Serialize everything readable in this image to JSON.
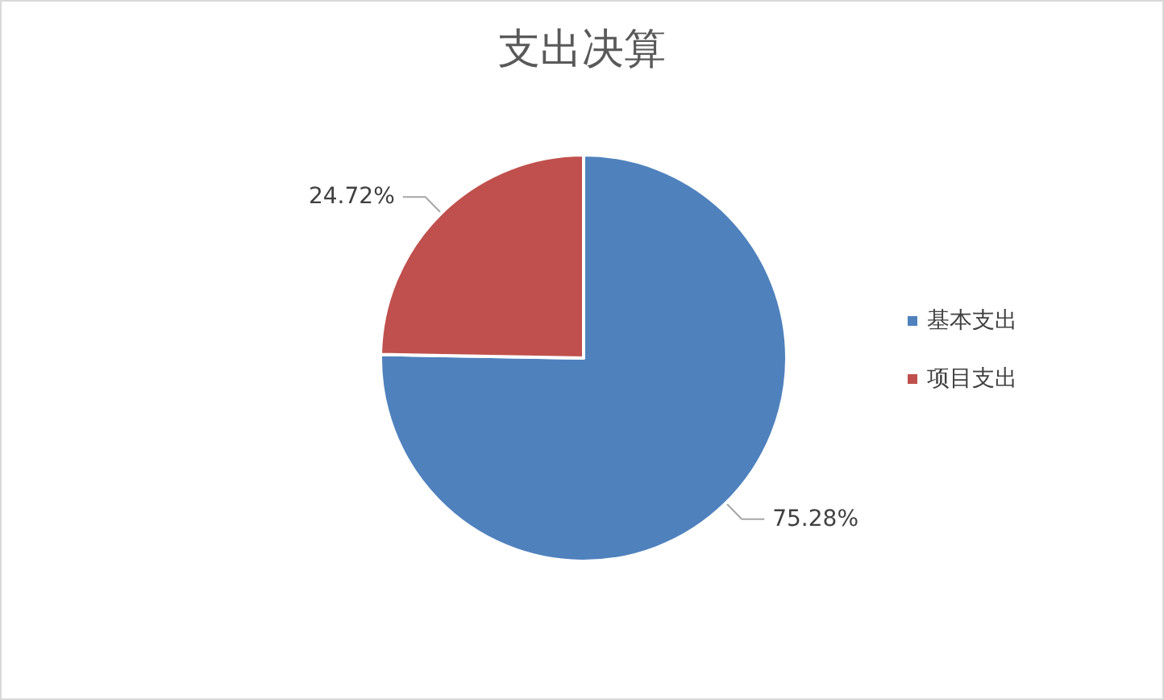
{
  "chart_data": {
    "type": "pie",
    "title": "支出决算",
    "categories": [
      "基本支出",
      "项目支出"
    ],
    "values": [
      75.28,
      24.72
    ],
    "colors": [
      "#4f81bd",
      "#c0504d"
    ],
    "value_labels": [
      "75.28%",
      "24.72%"
    ],
    "legend": "right"
  }
}
